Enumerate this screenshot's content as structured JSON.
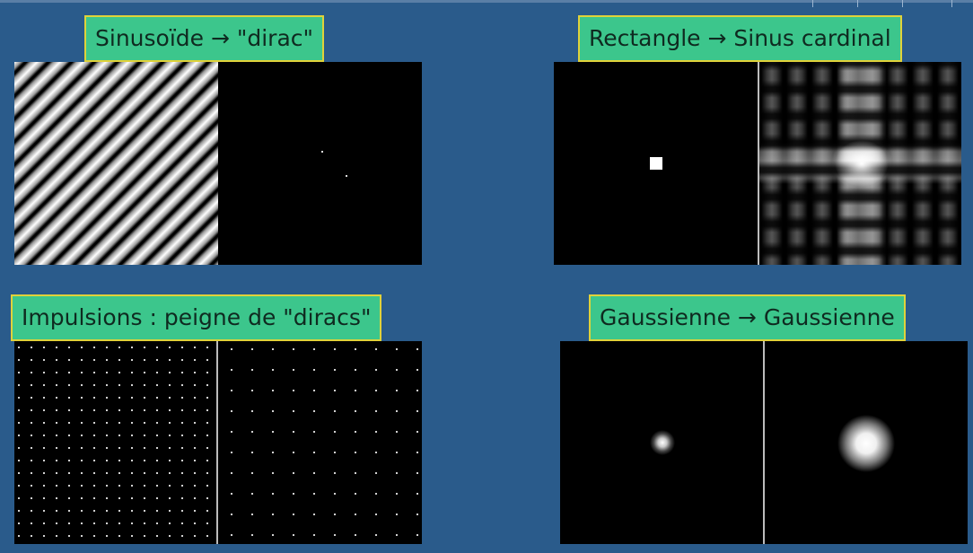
{
  "panels": {
    "sinus": {
      "title": "Sinusoïde → \"dirac\""
    },
    "rect": {
      "title": "Rectangle → Sinus cardinal"
    },
    "impulse": {
      "title": "Impulsions : peigne de \"diracs\""
    },
    "gauss": {
      "title": "Gaussienne → Gaussienne"
    }
  },
  "colors": {
    "background": "#2a5b8b",
    "label_fill": "#3cc68c",
    "label_border": "#e0d23a"
  }
}
